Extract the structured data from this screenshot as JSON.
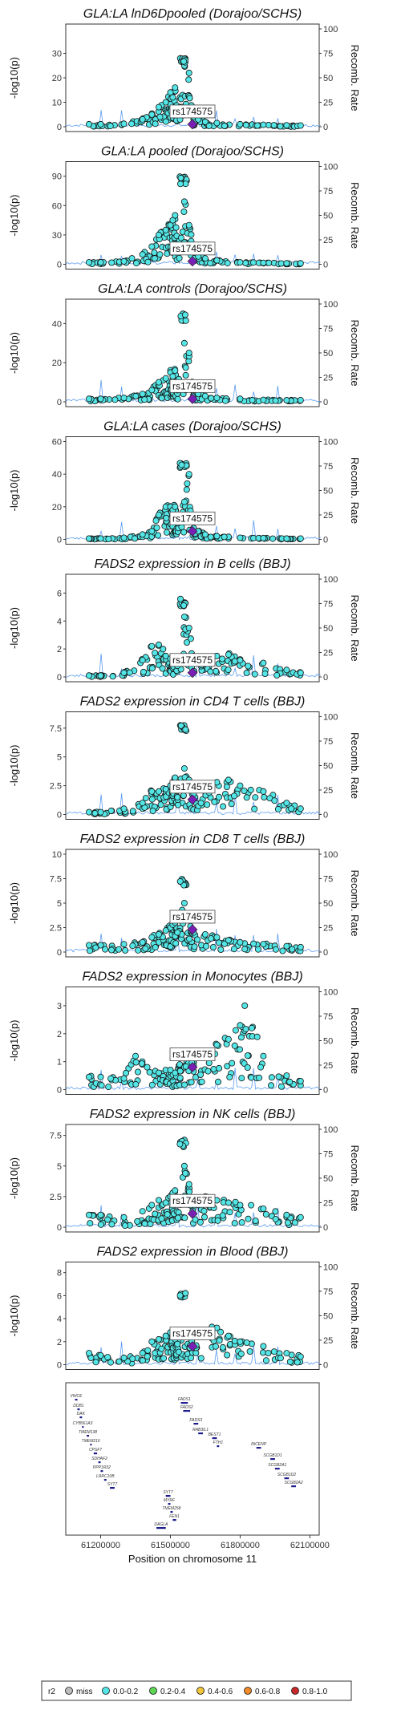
{
  "lead_snp": "rs174575",
  "recomb_axis": {
    "label": "Recomb. Rate",
    "ticks": [
      0,
      25,
      50,
      75,
      100
    ]
  },
  "y_axis_label": "-log10(p)",
  "x_axis": {
    "label": "Position on chromosome 11",
    "ticks": [
      "61200000",
      "61500000",
      "61800000",
      "62100000"
    ],
    "tick_values": [
      61200000,
      61500000,
      61800000,
      62100000
    ]
  },
  "legend": {
    "title": "r2",
    "items": [
      {
        "label": "miss",
        "color": "#bdbdbd"
      },
      {
        "label": "0.0-0.2",
        "color": "#54e6e6"
      },
      {
        "label": "0.2-0.4",
        "color": "#5ed653"
      },
      {
        "label": "0.4-0.6",
        "color": "#f0c53a"
      },
      {
        "label": "0.6-0.8",
        "color": "#f08a2a"
      },
      {
        "label": "0.8-1.0",
        "color": "#c8282a"
      }
    ]
  },
  "colors": {
    "point": "#54e6e6",
    "lead": "#7a1fb3",
    "recomb": "#5c9bf0",
    "gene": "#1c1c8c"
  },
  "genes": [
    "VWCE",
    "DDB1",
    "DAK",
    "CYB561A3",
    "TMEM138",
    "TMEM216",
    "CPSF7",
    "SDHAF2",
    "PPP1R32",
    "LRRC10B",
    "SYT7",
    "DAGLA",
    "SYT7",
    "MYRF",
    "TMEM258",
    "FEN1",
    "FADS1",
    "FADS2",
    "FADS3",
    "RAB3IL1",
    "BEST1",
    "FTH1",
    "INCENP",
    "SCGB1D1",
    "SCGB2A1",
    "SCGB1D2",
    "SCGB2A2"
  ],
  "chart_data": [
    {
      "type": "scatter",
      "title": "GLA:LA lnD6Dpooled (Dorajoo/SCHS)",
      "ylim": [
        0,
        40
      ],
      "yticks": [
        0,
        10,
        20,
        30
      ],
      "lead_x": 61595000,
      "lead_y": 1.0,
      "cluster_x": [
        61540000,
        61570000
      ],
      "cluster_y": [
        26,
        28
      ],
      "pts": [
        [
          61150000,
          1.0
        ],
        [
          61200000,
          1.0
        ],
        [
          61300000,
          1.2
        ],
        [
          61380000,
          3
        ],
        [
          61420000,
          5
        ],
        [
          61450000,
          8
        ],
        [
          61480000,
          10
        ],
        [
          61500000,
          14
        ],
        [
          61510000,
          12
        ],
        [
          61520000,
          16
        ],
        [
          61530000,
          5
        ],
        [
          61560000,
          25
        ],
        [
          61580000,
          22
        ],
        [
          61600000,
          4
        ],
        [
          61620000,
          3
        ],
        [
          61650000,
          2
        ],
        [
          61700000,
          1.5
        ],
        [
          61800000,
          1.0
        ],
        [
          61900000,
          0.8
        ],
        [
          62000000,
          0.6
        ],
        [
          62060000,
          0.5
        ]
      ]
    },
    {
      "type": "scatter",
      "title": "GLA:LA pooled (Dorajoo/SCHS)",
      "ylim": [
        0,
        100
      ],
      "yticks": [
        0,
        30,
        60,
        90
      ],
      "lead_x": 61595000,
      "lead_y": 3,
      "cluster_x": [
        61540000,
        61570000
      ],
      "cluster_y": [
        82,
        90
      ],
      "pts": [
        [
          61150000,
          2
        ],
        [
          61200000,
          2
        ],
        [
          61300000,
          3
        ],
        [
          61380000,
          10
        ],
        [
          61420000,
          18
        ],
        [
          61450000,
          30
        ],
        [
          61480000,
          35
        ],
        [
          61500000,
          40
        ],
        [
          61510000,
          45
        ],
        [
          61520000,
          50
        ],
        [
          61530000,
          20
        ],
        [
          61560000,
          64
        ],
        [
          61580000,
          40
        ],
        [
          61600000,
          15
        ],
        [
          61620000,
          8
        ],
        [
          61650000,
          6
        ],
        [
          61700000,
          4
        ],
        [
          61800000,
          2
        ],
        [
          61900000,
          1.5
        ],
        [
          62000000,
          1
        ],
        [
          62060000,
          1
        ]
      ]
    },
    {
      "type": "scatter",
      "title": "GLA:LA controls (Dorajoo/SCHS)",
      "ylim": [
        0,
        50
      ],
      "yticks": [
        0,
        20,
        40
      ],
      "lead_x": 61595000,
      "lead_y": 1.5,
      "cluster_x": [
        61540000,
        61570000
      ],
      "cluster_y": [
        41,
        45
      ],
      "pts": [
        [
          61150000,
          1.5
        ],
        [
          61200000,
          1.5
        ],
        [
          61300000,
          2
        ],
        [
          61380000,
          4
        ],
        [
          61420000,
          6
        ],
        [
          61450000,
          10
        ],
        [
          61480000,
          12
        ],
        [
          61500000,
          15
        ],
        [
          61510000,
          13
        ],
        [
          61520000,
          16
        ],
        [
          61530000,
          6
        ],
        [
          61560000,
          30
        ],
        [
          61580000,
          25
        ],
        [
          61600000,
          6
        ],
        [
          61620000,
          4
        ],
        [
          61650000,
          3
        ],
        [
          61700000,
          2
        ],
        [
          61800000,
          1.5
        ],
        [
          61900000,
          1
        ],
        [
          62000000,
          0.8
        ],
        [
          62060000,
          0.8
        ]
      ]
    },
    {
      "type": "scatter",
      "title": "GLA:LA cases (Dorajoo/SCHS)",
      "ylim": [
        0,
        60
      ],
      "yticks": [
        0,
        20,
        40,
        60
      ],
      "lead_x": 61595000,
      "lead_y": 5,
      "cluster_x": [
        61540000,
        61570000
      ],
      "cluster_y": [
        44,
        48
      ],
      "pts": [
        [
          61150000,
          0.5
        ],
        [
          61200000,
          0.5
        ],
        [
          61300000,
          1
        ],
        [
          61380000,
          3
        ],
        [
          61420000,
          5
        ],
        [
          61450000,
          15
        ],
        [
          61480000,
          20
        ],
        [
          61500000,
          20
        ],
        [
          61510000,
          18
        ],
        [
          61520000,
          20
        ],
        [
          61530000,
          10
        ],
        [
          61560000,
          23
        ],
        [
          61580000,
          40
        ],
        [
          61600000,
          7
        ],
        [
          61620000,
          5
        ],
        [
          61650000,
          3
        ],
        [
          61700000,
          2
        ],
        [
          61800000,
          1
        ],
        [
          61900000,
          0.8
        ],
        [
          62000000,
          0.5
        ],
        [
          62060000,
          0.5
        ]
      ]
    },
    {
      "type": "scatter",
      "title": "FADS2 expression in B cells (BBJ)",
      "ylim": [
        0,
        7
      ],
      "yticks": [
        0,
        2,
        4,
        6
      ],
      "lead_x": 61595000,
      "lead_y": 0.3,
      "cluster_x": [
        61540000,
        61570000
      ],
      "cluster_y": [
        5,
        5.6
      ],
      "pts": [
        [
          61150000,
          0.1
        ],
        [
          61200000,
          0.1
        ],
        [
          61300000,
          0.3
        ],
        [
          61380000,
          1.2
        ],
        [
          61420000,
          2.2
        ],
        [
          61450000,
          2.3
        ],
        [
          61480000,
          1.5
        ],
        [
          61500000,
          1.3
        ],
        [
          61510000,
          1.0
        ],
        [
          61520000,
          1.4
        ],
        [
          61530000,
          0.8
        ],
        [
          61560000,
          4.3
        ],
        [
          61580000,
          3.5
        ],
        [
          61600000,
          1.5
        ],
        [
          61650000,
          1.2
        ],
        [
          61700000,
          1.5
        ],
        [
          61750000,
          1.6
        ],
        [
          61800000,
          1.2
        ],
        [
          61900000,
          1.0
        ],
        [
          62000000,
          0.5
        ],
        [
          62060000,
          0.3
        ]
      ]
    },
    {
      "type": "scatter",
      "title": "FADS2 expression in CD4 T cells (BBJ)",
      "ylim": [
        0,
        8.5
      ],
      "yticks": [
        0,
        2.5,
        5.0,
        7.5
      ],
      "lead_x": 61595000,
      "lead_y": 1.3,
      "cluster_x": [
        61540000,
        61570000
      ],
      "cluster_y": [
        7.2,
        7.8
      ],
      "pts": [
        [
          61150000,
          0.2
        ],
        [
          61200000,
          0.2
        ],
        [
          61300000,
          0.5
        ],
        [
          61380000,
          1.0
        ],
        [
          61420000,
          2.0
        ],
        [
          61450000,
          2.0
        ],
        [
          61480000,
          2.2
        ],
        [
          61500000,
          2.5
        ],
        [
          61510000,
          2.8
        ],
        [
          61520000,
          3.2
        ],
        [
          61530000,
          1.5
        ],
        [
          61560000,
          4.0
        ],
        [
          61580000,
          3.0
        ],
        [
          61600000,
          1.8
        ],
        [
          61650000,
          2.5
        ],
        [
          61700000,
          2.8
        ],
        [
          61750000,
          3.0
        ],
        [
          61800000,
          2.5
        ],
        [
          61900000,
          2.0
        ],
        [
          62000000,
          1.0
        ],
        [
          62060000,
          0.5
        ]
      ]
    },
    {
      "type": "scatter",
      "title": "FADS2 expression in CD8 T cells (BBJ)",
      "ylim": [
        0,
        10
      ],
      "yticks": [
        0,
        2.5,
        5.0,
        7.5,
        10.0
      ],
      "lead_x": 61595000,
      "lead_y": 2.3,
      "cluster_x": [
        61540000,
        61570000
      ],
      "cluster_y": [
        6.8,
        7.8
      ],
      "pts": [
        [
          61150000,
          0.7
        ],
        [
          61200000,
          0.7
        ],
        [
          61300000,
          0.8
        ],
        [
          61380000,
          1.0
        ],
        [
          61420000,
          1.5
        ],
        [
          61450000,
          1.8
        ],
        [
          61480000,
          2.2
        ],
        [
          61500000,
          2.5
        ],
        [
          61510000,
          2.8
        ],
        [
          61520000,
          3.0
        ],
        [
          61530000,
          2.0
        ],
        [
          61560000,
          5.0
        ],
        [
          61580000,
          3.5
        ],
        [
          61600000,
          2.0
        ],
        [
          61650000,
          1.8
        ],
        [
          61700000,
          1.5
        ],
        [
          61750000,
          1.2
        ],
        [
          61800000,
          1.0
        ],
        [
          61900000,
          0.8
        ],
        [
          62000000,
          0.6
        ],
        [
          62060000,
          0.5
        ]
      ]
    },
    {
      "type": "scatter",
      "title": "FADS2 expression in Monocytes (BBJ)",
      "ylim": [
        0,
        3.5
      ],
      "yticks": [
        0,
        1,
        2,
        3
      ],
      "lead_x": 61595000,
      "lead_y": 0.8,
      "cluster_x": [
        61560000,
        61600000
      ],
      "cluster_y": [
        0.8,
        1.1
      ],
      "pts": [
        [
          61150000,
          0.45
        ],
        [
          61200000,
          0.45
        ],
        [
          61300000,
          0.4
        ],
        [
          61350000,
          1.2
        ],
        [
          61400000,
          0.8
        ],
        [
          61450000,
          0.6
        ],
        [
          61480000,
          0.7
        ],
        [
          61500000,
          0.7
        ],
        [
          61520000,
          0.6
        ],
        [
          61540000,
          0.9
        ],
        [
          61560000,
          0.8
        ],
        [
          61600000,
          1.0
        ],
        [
          61650000,
          1.3
        ],
        [
          61700000,
          1.6
        ],
        [
          61750000,
          1.8
        ],
        [
          61800000,
          2.3
        ],
        [
          61820000,
          3.0
        ],
        [
          61850000,
          2.2
        ],
        [
          61900000,
          1.2
        ],
        [
          62000000,
          0.5
        ],
        [
          62060000,
          0.3
        ]
      ]
    },
    {
      "type": "scatter",
      "title": "FADS2 expression in NK cells (BBJ)",
      "ylim": [
        0,
        8
      ],
      "yticks": [
        0,
        2.5,
        5.0,
        7.5
      ],
      "lead_x": 61595000,
      "lead_y": 1.1,
      "cluster_x": [
        61540000,
        61570000
      ],
      "cluster_y": [
        6.5,
        7.3
      ],
      "pts": [
        [
          61150000,
          1.0
        ],
        [
          61200000,
          1.0
        ],
        [
          61300000,
          0.8
        ],
        [
          61380000,
          1.3
        ],
        [
          61420000,
          1.8
        ],
        [
          61450000,
          2.2
        ],
        [
          61480000,
          2.0
        ],
        [
          61500000,
          2.5
        ],
        [
          61510000,
          2.8
        ],
        [
          61520000,
          3.0
        ],
        [
          61530000,
          2.0
        ],
        [
          61560000,
          5.0
        ],
        [
          61580000,
          3.5
        ],
        [
          61600000,
          2.0
        ],
        [
          61650000,
          2.5
        ],
        [
          61700000,
          2.2
        ],
        [
          61750000,
          2.0
        ],
        [
          61800000,
          1.8
        ],
        [
          61900000,
          1.5
        ],
        [
          62000000,
          1.0
        ],
        [
          62060000,
          0.8
        ]
      ]
    },
    {
      "type": "scatter",
      "title": "FADS2 expression in Blood (BBJ)",
      "ylim": [
        0,
        8.5
      ],
      "yticks": [
        0,
        2,
        4,
        6,
        8
      ],
      "lead_x": 61595000,
      "lead_y": 1.6,
      "cluster_x": [
        61540000,
        61570000
      ],
      "cluster_y": [
        5.8,
        6.3
      ],
      "pts": [
        [
          61150000,
          1.0
        ],
        [
          61200000,
          0.8
        ],
        [
          61300000,
          0.6
        ],
        [
          61380000,
          1.0
        ],
        [
          61420000,
          2.0
        ],
        [
          61450000,
          2.2
        ],
        [
          61480000,
          2.5
        ],
        [
          61500000,
          2.8
        ],
        [
          61510000,
          2.5
        ],
        [
          61520000,
          2.2
        ],
        [
          61530000,
          1.8
        ],
        [
          61560000,
          2.8
        ],
        [
          61580000,
          3.0
        ],
        [
          61600000,
          2.5
        ],
        [
          61650000,
          2.8
        ],
        [
          61700000,
          3.2
        ],
        [
          61750000,
          2.5
        ],
        [
          61800000,
          2.0
        ],
        [
          61900000,
          1.6
        ],
        [
          62000000,
          1.0
        ],
        [
          62060000,
          0.7
        ]
      ]
    }
  ]
}
